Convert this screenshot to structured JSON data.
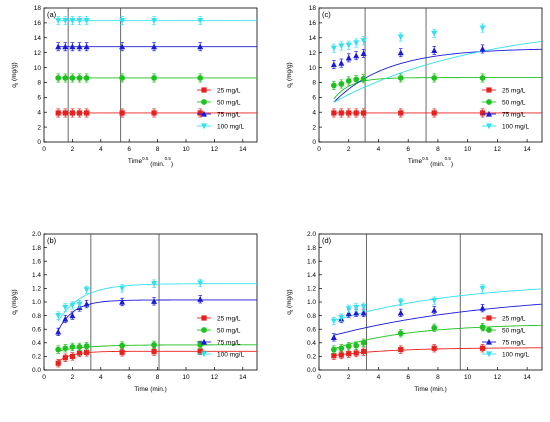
{
  "figure": {
    "panels": [
      "a",
      "b",
      "c",
      "d"
    ]
  },
  "chart_data": [
    {
      "id": "a",
      "type": "scatter",
      "panel_label": "(a)",
      "xlabel": "Time",
      "xlabel_sup": "0.5",
      "xlabel_unit": "(min.",
      "xlabel_unit_sup": "0.5",
      "xlabel_close": ")",
      "ylabel": "q",
      "ylabel_sub": "t",
      "ylabel_unit": " (mg/g)",
      "xlim": [
        0,
        15
      ],
      "ylim": [
        0,
        18
      ],
      "xticks": [
        0,
        2,
        4,
        6,
        8,
        10,
        12,
        14
      ],
      "yticks": [
        0,
        2,
        4,
        6,
        8,
        10,
        12,
        14,
        16,
        18
      ],
      "ytick_decimals": 0,
      "grid": false,
      "legend_position": "bottom-right",
      "vlines": [
        1.7,
        5.4
      ],
      "error": 0.55,
      "series": [
        {
          "name": "25 mg/L",
          "color": "#e8201e",
          "marker": "square",
          "x": [
            1.0,
            1.5,
            2.0,
            2.5,
            3.0,
            5.5,
            7.75,
            11.0
          ],
          "y": [
            3.9,
            3.9,
            3.9,
            3.9,
            3.9,
            3.9,
            3.9,
            3.9
          ],
          "fit": {
            "type": "flat",
            "y": 3.9
          }
        },
        {
          "name": "50 mg/L",
          "color": "#1ec21e",
          "marker": "circle",
          "x": [
            1.0,
            1.5,
            2.0,
            2.5,
            3.0,
            5.5,
            7.75,
            11.0
          ],
          "y": [
            8.6,
            8.6,
            8.6,
            8.6,
            8.6,
            8.6,
            8.6,
            8.6
          ],
          "fit": {
            "type": "flat",
            "y": 8.6
          }
        },
        {
          "name": "75 mg/L",
          "color": "#1a1adc",
          "marker": "triangle-up",
          "x": [
            1.0,
            1.5,
            2.0,
            2.5,
            3.0,
            5.5,
            7.75,
            11.0
          ],
          "y": [
            12.8,
            12.8,
            12.8,
            12.8,
            12.8,
            12.8,
            12.8,
            12.8
          ],
          "fit": {
            "type": "flat",
            "y": 12.8
          }
        },
        {
          "name": "100 mg/L",
          "color": "#33e0f0",
          "marker": "triangle-down",
          "x": [
            1.0,
            1.5,
            2.0,
            2.5,
            3.0,
            5.5,
            7.75,
            11.0
          ],
          "y": [
            16.3,
            16.3,
            16.3,
            16.3,
            16.3,
            16.3,
            16.3,
            16.3
          ],
          "fit": {
            "type": "flat",
            "y": 16.3
          }
        }
      ]
    },
    {
      "id": "c",
      "type": "scatter",
      "panel_label": "(c)",
      "xlabel": "Time",
      "xlabel_sup": "0.5",
      "xlabel_unit": "(min.",
      "xlabel_unit_sup": "0.5",
      "xlabel_close": ")",
      "ylabel": "q",
      "ylabel_sub": "t",
      "ylabel_unit": " (mg/g)",
      "xlim": [
        0,
        15
      ],
      "ylim": [
        0,
        18
      ],
      "xticks": [
        0,
        2,
        4,
        6,
        8,
        10,
        12,
        14
      ],
      "yticks": [
        0,
        2,
        4,
        6,
        8,
        10,
        12,
        14,
        16,
        18
      ],
      "ytick_decimals": 0,
      "grid": false,
      "legend_position": "bottom-right",
      "vlines": [
        3.1,
        7.2
      ],
      "error": 0.55,
      "series": [
        {
          "name": "25 mg/L",
          "color": "#e8201e",
          "marker": "square",
          "x": [
            1.0,
            1.5,
            2.0,
            2.5,
            3.0,
            5.5,
            7.75,
            11.0
          ],
          "y": [
            3.9,
            3.9,
            3.9,
            3.9,
            3.9,
            3.9,
            3.9,
            3.9
          ],
          "fit": {
            "type": "flat",
            "y": 3.9
          }
        },
        {
          "name": "50 mg/L",
          "color": "#1ec21e",
          "marker": "circle",
          "x": [
            1.0,
            1.5,
            2.0,
            2.5,
            3.0,
            5.5,
            7.75,
            11.0
          ],
          "y": [
            7.6,
            7.8,
            8.2,
            8.4,
            8.5,
            8.6,
            8.6,
            8.6
          ],
          "fit": {
            "type": "exp",
            "a": 8.65,
            "b": 7.0,
            "k": 0.9
          }
        },
        {
          "name": "75 mg/L",
          "color": "#1a1adc",
          "marker": "triangle-up",
          "x": [
            1.0,
            1.5,
            2.0,
            2.5,
            3.0,
            5.5,
            7.75,
            11.0
          ],
          "y": [
            10.4,
            10.6,
            11.3,
            11.6,
            11.9,
            12.0,
            12.3,
            12.5
          ],
          "fit": {
            "type": "exp",
            "a": 12.6,
            "b": 9.6,
            "k": 0.28
          }
        },
        {
          "name": "100 mg/L",
          "color": "#33e0f0",
          "marker": "triangle-down",
          "x": [
            1.0,
            1.5,
            2.0,
            2.5,
            3.0,
            5.5,
            7.75,
            11.0
          ],
          "y": [
            12.6,
            12.9,
            13.0,
            13.3,
            13.6,
            14.1,
            14.6,
            15.3
          ],
          "fit": {
            "type": "exp",
            "a": 16.2,
            "b": 12.0,
            "k": 0.1
          }
        }
      ]
    },
    {
      "id": "b",
      "type": "scatter",
      "panel_label": "(b)",
      "xlabel": "Time (min.)",
      "xlabel_sup": "",
      "xlabel_unit": "",
      "xlabel_unit_sup": "",
      "xlabel_close": "",
      "ylabel": "q",
      "ylabel_sub": "t",
      "ylabel_unit": " (mg/g)",
      "xlim": [
        0,
        15
      ],
      "ylim": [
        0,
        2.0
      ],
      "xticks": [
        0,
        2,
        4,
        6,
        8,
        10,
        12,
        14
      ],
      "yticks": [
        0,
        0.2,
        0.4,
        0.6,
        0.8,
        1.0,
        1.2,
        1.4,
        1.6,
        1.8,
        2.0
      ],
      "ytick_decimals": 1,
      "grid": false,
      "legend_position": "bottom-right",
      "vlines": [
        3.3,
        8.1
      ],
      "error": 0.055,
      "series": [
        {
          "name": "25 mg/L",
          "color": "#e8201e",
          "marker": "square",
          "x": [
            1.0,
            1.5,
            2.0,
            2.5,
            3.0,
            5.5,
            7.75,
            11.0
          ],
          "y": [
            0.1,
            0.18,
            0.2,
            0.25,
            0.26,
            0.26,
            0.27,
            0.28
          ],
          "fit": {
            "type": "exp",
            "a": 0.275,
            "b": 0.4,
            "k": 1.0
          }
        },
        {
          "name": "50 mg/L",
          "color": "#1ec21e",
          "marker": "circle",
          "x": [
            1.0,
            1.5,
            2.0,
            2.5,
            3.0,
            5.5,
            7.75,
            11.0
          ],
          "y": [
            0.3,
            0.32,
            0.34,
            0.34,
            0.35,
            0.36,
            0.37,
            0.37
          ],
          "fit": {
            "type": "exp",
            "a": 0.37,
            "b": 0.15,
            "k": 0.5
          }
        },
        {
          "name": "75 mg/L",
          "color": "#1a1adc",
          "marker": "triangle-up",
          "x": [
            1.0,
            1.5,
            2.0,
            2.5,
            3.0,
            5.5,
            7.75,
            11.0
          ],
          "y": [
            0.56,
            0.75,
            0.8,
            0.92,
            0.97,
            1.0,
            1.01,
            1.04
          ],
          "fit": {
            "type": "exp",
            "a": 1.03,
            "b": 1.1,
            "k": 0.9
          }
        },
        {
          "name": "100 mg/L",
          "color": "#33e0f0",
          "marker": "triangle-down",
          "x": [
            1.0,
            1.5,
            2.0,
            2.5,
            3.0,
            5.5,
            7.75,
            11.0
          ],
          "y": [
            0.8,
            0.92,
            0.95,
            0.97,
            1.18,
            1.2,
            1.27,
            1.28
          ],
          "fit": {
            "type": "exp",
            "a": 1.27,
            "b": 1.0,
            "k": 0.6
          }
        }
      ]
    },
    {
      "id": "d",
      "type": "scatter",
      "panel_label": "(d)",
      "xlabel": "Time (min.)",
      "xlabel_sup": "",
      "xlabel_unit": "",
      "xlabel_unit_sup": "",
      "xlabel_close": "",
      "ylabel": "q",
      "ylabel_sub": "t",
      "ylabel_unit": " (mg/g)",
      "xlim": [
        0,
        15
      ],
      "ylim": [
        0,
        2.0
      ],
      "xticks": [
        0,
        2,
        4,
        6,
        8,
        10,
        12,
        14
      ],
      "yticks": [
        0,
        0.2,
        0.4,
        0.6,
        0.8,
        1.0,
        1.2,
        1.4,
        1.6,
        1.8,
        2.0
      ],
      "ytick_decimals": 1,
      "grid": false,
      "legend_position": "bottom-right",
      "vlines": [
        3.2,
        9.5
      ],
      "error": 0.055,
      "series": [
        {
          "name": "25 mg/L",
          "color": "#e8201e",
          "marker": "square",
          "x": [
            1.0,
            1.5,
            2.0,
            2.5,
            3.0,
            5.5,
            7.75,
            11.0
          ],
          "y": [
            0.21,
            0.22,
            0.24,
            0.25,
            0.27,
            0.3,
            0.32,
            0.32
          ],
          "fit": {
            "type": "exp",
            "a": 0.33,
            "b": 0.15,
            "k": 0.25
          }
        },
        {
          "name": "50 mg/L",
          "color": "#1ec21e",
          "marker": "circle",
          "x": [
            1.0,
            1.5,
            2.0,
            2.5,
            3.0,
            5.5,
            7.75,
            11.0
          ],
          "y": [
            0.3,
            0.32,
            0.35,
            0.36,
            0.4,
            0.54,
            0.62,
            0.63
          ],
          "fit": {
            "type": "exp",
            "a": 0.68,
            "b": 0.45,
            "k": 0.2
          }
        },
        {
          "name": "75 mg/L",
          "color": "#1a1adc",
          "marker": "triangle-up",
          "x": [
            1.0,
            1.5,
            2.0,
            2.5,
            3.0,
            5.5,
            7.75,
            11.0
          ],
          "y": [
            0.48,
            0.75,
            0.83,
            0.84,
            0.84,
            0.84,
            0.88,
            0.91
          ],
          "fit": {
            "type": "exp",
            "a": 1.15,
            "b": 0.7,
            "k": 0.09
          }
        },
        {
          "name": "100 mg/L",
          "color": "#33e0f0",
          "marker": "triangle-down",
          "x": [
            1.0,
            1.5,
            2.0,
            2.5,
            3.0,
            5.5,
            7.75,
            11.0
          ],
          "y": [
            0.72,
            0.77,
            0.9,
            0.92,
            0.93,
            1.0,
            1.02,
            1.2
          ],
          "fit": {
            "type": "exp",
            "a": 1.3,
            "b": 0.65,
            "k": 0.12
          }
        }
      ]
    }
  ]
}
